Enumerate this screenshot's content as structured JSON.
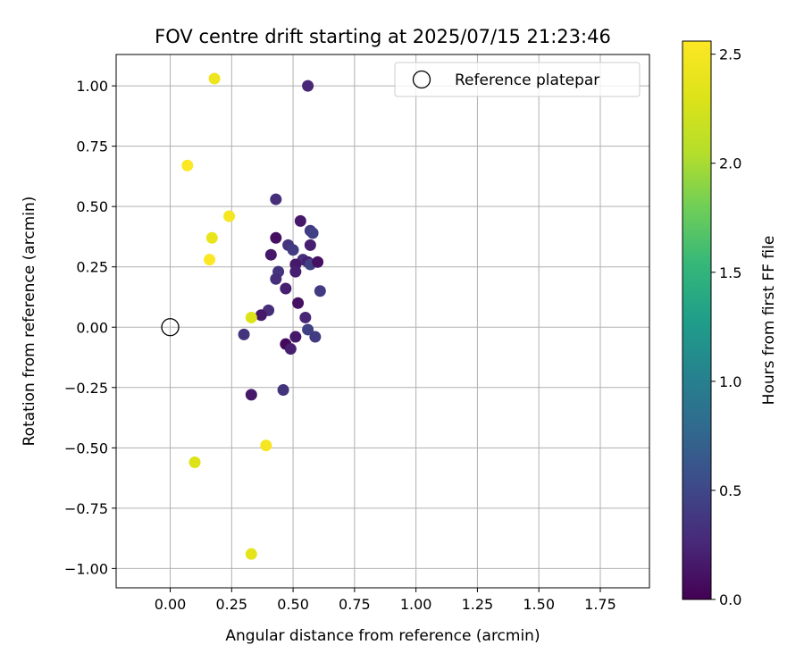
{
  "chart_data": {
    "type": "scatter",
    "title": "FOV centre drift starting at 2025/07/15 21:23:46",
    "xlabel": "Angular distance from reference (arcmin)",
    "ylabel": "Rotation from reference (arcmin)",
    "xlim": [
      -0.22,
      1.95
    ],
    "ylim": [
      -1.08,
      1.13
    ],
    "xticks": [
      0.0,
      0.25,
      0.5,
      0.75,
      1.0,
      1.25,
      1.5,
      1.75
    ],
    "xtick_labels": [
      "0.00",
      "0.25",
      "0.50",
      "0.75",
      "1.00",
      "1.25",
      "1.50",
      "1.75"
    ],
    "yticks": [
      1.0,
      0.75,
      0.5,
      0.25,
      0.0,
      -0.25,
      -0.5,
      -0.75,
      -1.0
    ],
    "ytick_labels": [
      "1.00",
      "0.75",
      "0.50",
      "0.25",
      "0.00",
      "−0.25",
      "−0.50",
      "−0.75",
      "−1.00"
    ],
    "grid": true,
    "legend": {
      "position": "top-right",
      "entries": [
        "Reference platepar"
      ]
    },
    "reference_point": {
      "x": 0.0,
      "y": 0.0
    },
    "colorbar": {
      "label": "Hours from first FF file",
      "range": [
        0.0,
        2.56
      ],
      "colormap": "viridis",
      "ticks": [
        0.0,
        0.5,
        1.0,
        1.5,
        2.0,
        2.5
      ],
      "tick_labels": [
        "0.0",
        "0.5",
        "1.0",
        "1.5",
        "2.0",
        "2.5"
      ]
    },
    "points": [
      {
        "x": 0.56,
        "y": 1.0,
        "c": 0.25
      },
      {
        "x": 0.43,
        "y": 0.53,
        "c": 0.3
      },
      {
        "x": 0.53,
        "y": 0.44,
        "c": 0.15
      },
      {
        "x": 0.57,
        "y": 0.4,
        "c": 0.4
      },
      {
        "x": 0.58,
        "y": 0.39,
        "c": 0.45
      },
      {
        "x": 0.43,
        "y": 0.37,
        "c": 0.1
      },
      {
        "x": 0.57,
        "y": 0.34,
        "c": 0.2
      },
      {
        "x": 0.48,
        "y": 0.34,
        "c": 0.35
      },
      {
        "x": 0.5,
        "y": 0.32,
        "c": 0.4
      },
      {
        "x": 0.41,
        "y": 0.3,
        "c": 0.15
      },
      {
        "x": 0.54,
        "y": 0.28,
        "c": 0.3
      },
      {
        "x": 0.56,
        "y": 0.27,
        "c": 0.2
      },
      {
        "x": 0.57,
        "y": 0.26,
        "c": 0.45
      },
      {
        "x": 0.6,
        "y": 0.27,
        "c": 0.1
      },
      {
        "x": 0.51,
        "y": 0.26,
        "c": 0.15
      },
      {
        "x": 0.44,
        "y": 0.23,
        "c": 0.35
      },
      {
        "x": 0.51,
        "y": 0.23,
        "c": 0.2
      },
      {
        "x": 0.43,
        "y": 0.2,
        "c": 0.3
      },
      {
        "x": 0.47,
        "y": 0.16,
        "c": 0.2
      },
      {
        "x": 0.61,
        "y": 0.15,
        "c": 0.4
      },
      {
        "x": 0.52,
        "y": 0.1,
        "c": 0.1
      },
      {
        "x": 0.4,
        "y": 0.07,
        "c": 0.3
      },
      {
        "x": 0.37,
        "y": 0.05,
        "c": 0.15
      },
      {
        "x": 0.55,
        "y": 0.04,
        "c": 0.25
      },
      {
        "x": 0.3,
        "y": -0.03,
        "c": 0.35
      },
      {
        "x": 0.56,
        "y": -0.01,
        "c": 0.45
      },
      {
        "x": 0.51,
        "y": -0.04,
        "c": 0.15
      },
      {
        "x": 0.59,
        "y": -0.04,
        "c": 0.4
      },
      {
        "x": 0.47,
        "y": -0.07,
        "c": 0.05
      },
      {
        "x": 0.49,
        "y": -0.09,
        "c": 0.2
      },
      {
        "x": 0.46,
        "y": -0.26,
        "c": 0.35
      },
      {
        "x": 0.33,
        "y": -0.28,
        "c": 0.15
      },
      {
        "x": 0.33,
        "y": 0.04,
        "c": 2.3
      },
      {
        "x": 0.18,
        "y": 1.03,
        "c": 2.45
      },
      {
        "x": 0.07,
        "y": 0.67,
        "c": 2.55
      },
      {
        "x": 0.24,
        "y": 0.46,
        "c": 2.5
      },
      {
        "x": 0.17,
        "y": 0.37,
        "c": 2.4
      },
      {
        "x": 0.16,
        "y": 0.28,
        "c": 2.55
      },
      {
        "x": 0.39,
        "y": -0.49,
        "c": 2.5
      },
      {
        "x": 0.1,
        "y": -0.56,
        "c": 2.3
      },
      {
        "x": 0.33,
        "y": -0.94,
        "c": 2.35
      }
    ]
  }
}
